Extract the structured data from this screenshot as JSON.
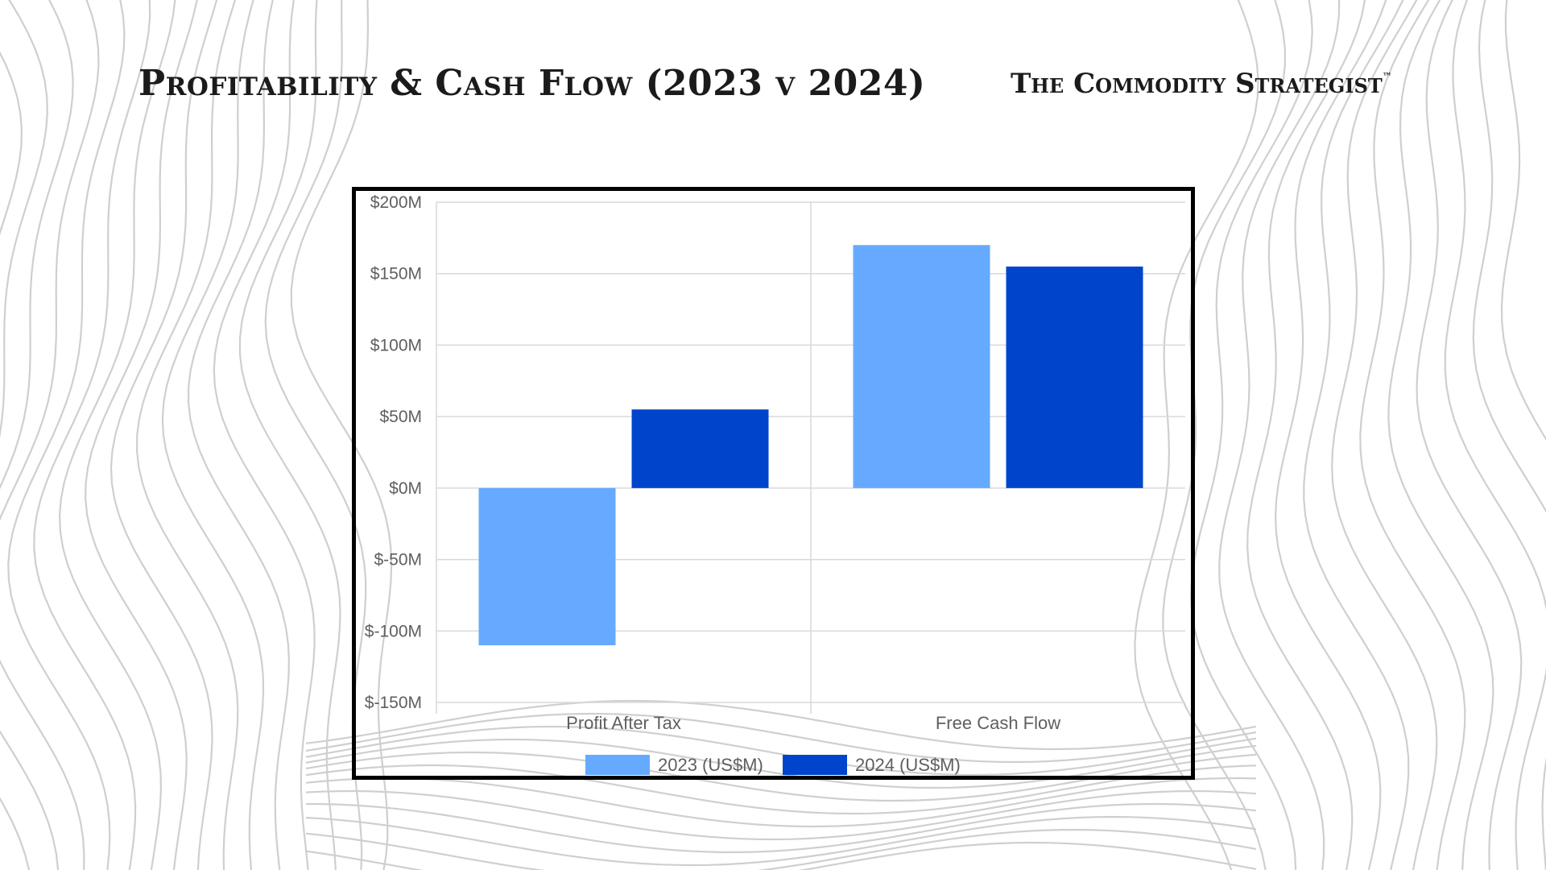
{
  "slide": {
    "title": "Profitability & Cash Flow (2023 v 2024)",
    "brand": "The Commodity Strategist",
    "brand_mark": "™"
  },
  "colors": {
    "series_2023": "#66aaff",
    "series_2024": "#0044cc",
    "grid": "#d9d9d9",
    "contour": "#cfcfcf"
  },
  "chart_data": {
    "type": "bar",
    "categories": [
      "Profit After Tax",
      "Free Cash Flow"
    ],
    "series": [
      {
        "name": "2023 (US$M)",
        "values": [
          -110,
          170
        ]
      },
      {
        "name": "2024 (US$M)",
        "values": [
          55,
          155
        ]
      }
    ],
    "title": "",
    "xlabel": "",
    "ylabel": "",
    "ylim": [
      -150,
      200
    ],
    "yticks": [
      200,
      150,
      100,
      50,
      0,
      -50,
      -100,
      -150
    ],
    "ytick_labels": [
      "$200M",
      "$150M",
      "$100M",
      "$50M",
      "$0M",
      "$-50M",
      "$-100M",
      "$-150M"
    ],
    "grid": true,
    "legend": "bottom"
  }
}
